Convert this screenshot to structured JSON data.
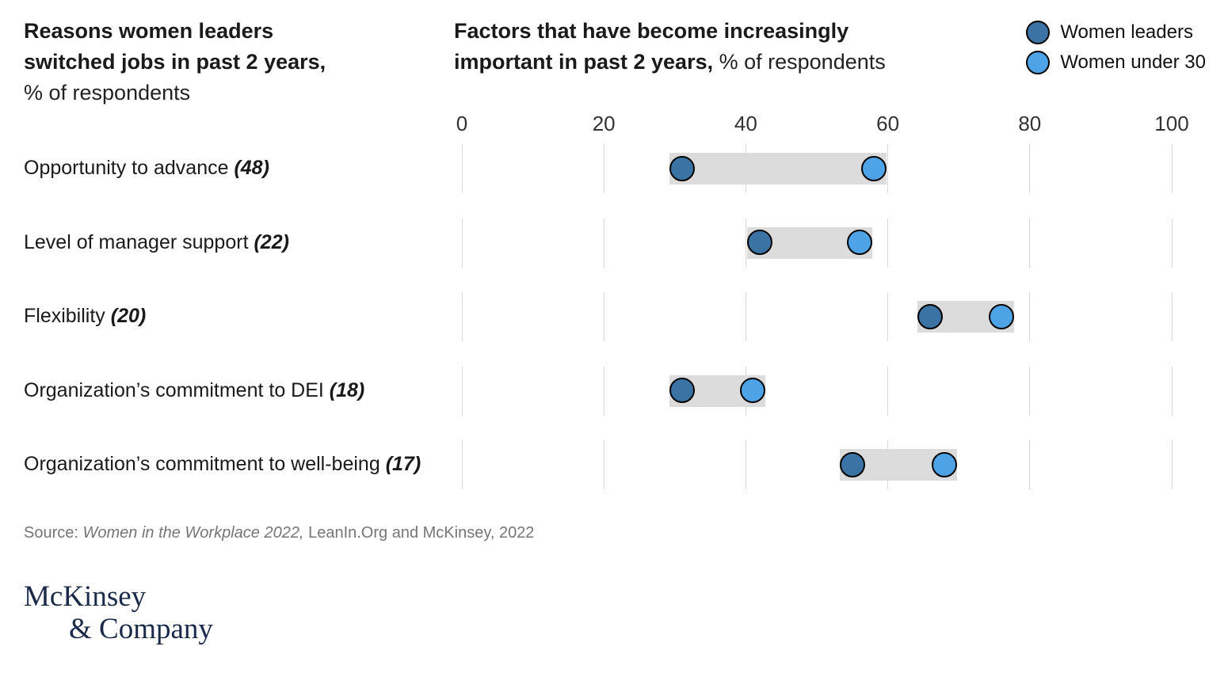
{
  "header": {
    "left_title_line1": "Reasons women leaders",
    "left_title_line2": "switched jobs in past 2 years,",
    "left_title_sub": "% of respondents",
    "right_title_line1": "Factors that have become increasingly",
    "right_title_line2": "important in past 2 years,",
    "right_title_sub": " % of respondents"
  },
  "legend": {
    "items": [
      {
        "label": "Women leaders",
        "color": "#3C73A5"
      },
      {
        "label": "Women under 30",
        "color": "#4DA3E6"
      }
    ]
  },
  "chart_data": {
    "type": "scatter",
    "subtype": "dumbbell",
    "title": "Factors that have become increasingly important in past 2 years, % of respondents",
    "xlabel": "% of respondents",
    "xlim": [
      0,
      100
    ],
    "x_ticks": [
      0,
      20,
      40,
      60,
      80,
      100
    ],
    "grid": "vertical-segments-per-row",
    "legend_position": "top-right",
    "categories": [
      {
        "label": "Opportunity to advance",
        "count": "(48)"
      },
      {
        "label": "Level of manager support",
        "count": "(22)"
      },
      {
        "label": "Flexibility",
        "count": "(20)"
      },
      {
        "label": "Organization’s commitment to DEI",
        "count": "(18)"
      },
      {
        "label": "Organization’s commitment to well-being",
        "count": "(17)"
      }
    ],
    "series": [
      {
        "name": "Women leaders",
        "color": "#3C73A5",
        "values": [
          31,
          42,
          66,
          31,
          55
        ]
      },
      {
        "name": "Women under 30",
        "color": "#4DA3E6",
        "values": [
          58,
          56,
          76,
          41,
          68
        ]
      }
    ],
    "connector_color": "#dcdcdc"
  },
  "source": {
    "prefix": "Source: ",
    "italic": "Women in the Workplace 2022,",
    "rest": " LeanIn.Org and McKinsey, 2022"
  },
  "logo": {
    "line1": "McKinsey",
    "line2": "& Company"
  }
}
